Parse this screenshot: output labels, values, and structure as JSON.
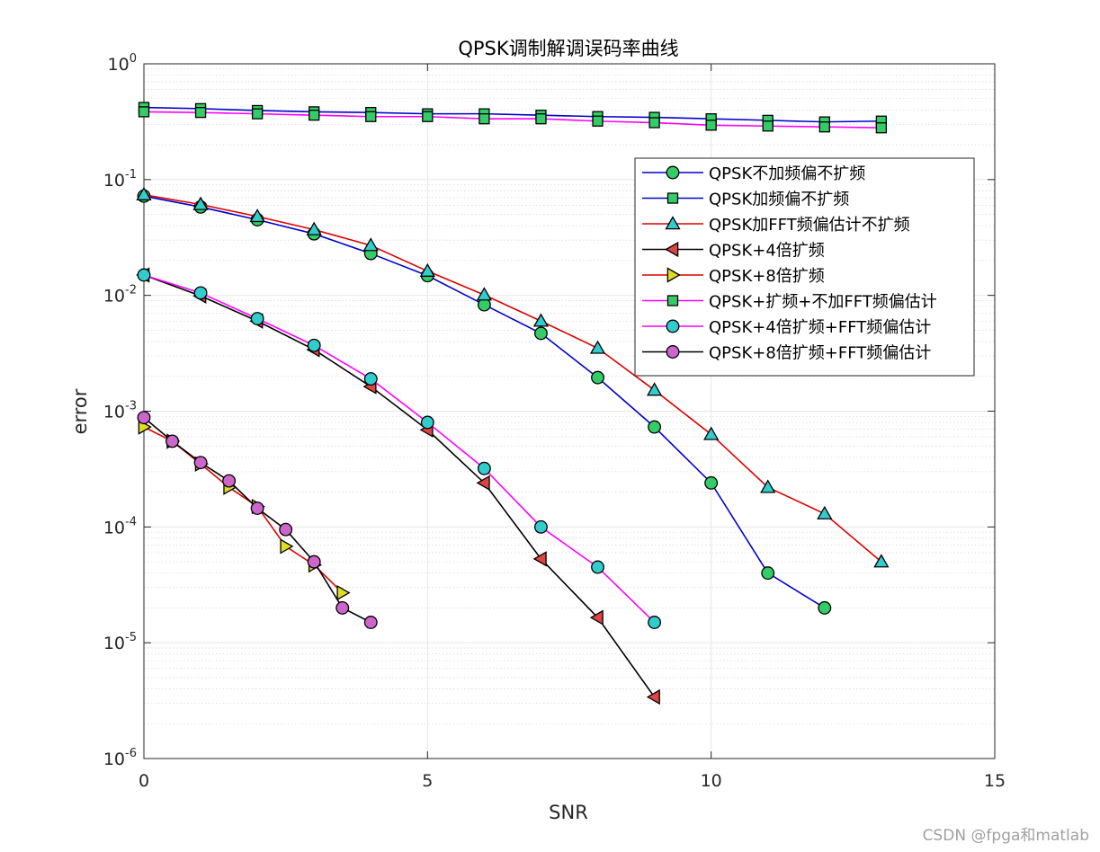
{
  "chart_data": {
    "type": "line",
    "title": "QPSK调制解调误码率曲线",
    "xlabel": "SNR",
    "ylabel": "error",
    "xlim": [
      0,
      15
    ],
    "ylim": [
      1e-06,
      1
    ],
    "yscale": "log",
    "grid": true,
    "minor_grid": true,
    "legend_position": "top-right",
    "x_ticks": [
      "0",
      "5",
      "10",
      "15"
    ],
    "y_ticks": [
      {
        "base": "10",
        "exp": "0"
      },
      {
        "base": "10",
        "exp": "-1"
      },
      {
        "base": "10",
        "exp": "-2"
      },
      {
        "base": "10",
        "exp": "-3"
      },
      {
        "base": "10",
        "exp": "-4"
      },
      {
        "base": "10",
        "exp": "-5"
      },
      {
        "base": "10",
        "exp": "-6"
      }
    ],
    "series": [
      {
        "name": "QPSK不加频偏不扩频",
        "line_color": "#0000cc",
        "marker": "circle",
        "marker_color": "#33cc66",
        "x": [
          0,
          1,
          2,
          3,
          4,
          5,
          6,
          7,
          8,
          9,
          10,
          11,
          12
        ],
        "y": [
          0.072,
          0.058,
          0.045,
          0.034,
          0.023,
          0.0148,
          0.0083,
          0.0047,
          0.00195,
          0.00073,
          0.00024,
          4e-05,
          2e-05
        ]
      },
      {
        "name": "QPSK加频偏不扩频",
        "line_color": "#0000cc",
        "marker": "square",
        "marker_color": "#33cc66",
        "x": [
          0,
          1,
          2,
          3,
          4,
          5,
          6,
          7,
          8,
          9,
          10,
          11,
          12,
          13
        ],
        "y": [
          0.42,
          0.41,
          0.395,
          0.385,
          0.38,
          0.37,
          0.37,
          0.36,
          0.35,
          0.345,
          0.335,
          0.325,
          0.315,
          0.32
        ]
      },
      {
        "name": "QPSK加FFT频偏估计不扩频",
        "line_color": "#dd0000",
        "marker": "triangle-up",
        "marker_color": "#33cccc",
        "x": [
          0,
          1,
          2,
          3,
          4,
          5,
          6,
          7,
          8,
          9,
          10,
          11,
          12,
          13
        ],
        "y": [
          0.074,
          0.061,
          0.048,
          0.037,
          0.027,
          0.0162,
          0.0101,
          0.006,
          0.0035,
          0.00152,
          0.00063,
          0.00022,
          0.00013,
          5e-05
        ]
      },
      {
        "name": "QPSK+4倍扩频",
        "line_color": "#000000",
        "marker": "triangle-left",
        "marker_color": "#dd4444",
        "x": [
          0,
          1,
          2,
          3,
          4,
          5,
          6,
          7,
          8,
          9
        ],
        "y": [
          0.015,
          0.0099,
          0.006,
          0.0034,
          0.00163,
          0.00069,
          0.00024,
          5.3e-05,
          1.65e-05,
          3.4e-06
        ]
      },
      {
        "name": "QPSK+8倍扩频",
        "line_color": "#dd0000",
        "marker": "triangle-right",
        "marker_color": "#dddd22",
        "x": [
          0,
          0.5,
          1,
          1.5,
          2,
          2.5,
          3,
          3.5
        ],
        "y": [
          0.00073,
          0.00055,
          0.00035,
          0.00022,
          0.00015,
          6.8e-05,
          4.7e-05,
          2.7e-05
        ]
      },
      {
        "name": "QPSK+扩频+不加FFT频偏估计",
        "line_color": "#ff00ff",
        "marker": "square",
        "marker_color": "#33cc66",
        "x": [
          0,
          1,
          2,
          3,
          4,
          5,
          6,
          7,
          8,
          9,
          10,
          11,
          12,
          13
        ],
        "y": [
          0.385,
          0.38,
          0.37,
          0.36,
          0.35,
          0.35,
          0.335,
          0.335,
          0.32,
          0.31,
          0.295,
          0.29,
          0.285,
          0.28
        ]
      },
      {
        "name": "QPSK+4倍扩频+FFT频偏估计",
        "line_color": "#ff00ff",
        "marker": "circle",
        "marker_color": "#33cccc",
        "x": [
          0,
          1,
          2,
          3,
          4,
          5,
          6,
          7,
          8,
          9
        ],
        "y": [
          0.015,
          0.0105,
          0.0063,
          0.0037,
          0.0019,
          0.0008,
          0.00032,
          0.0001,
          4.5e-05,
          1.5e-05
        ]
      },
      {
        "name": "QPSK+8倍扩频+FFT频偏估计",
        "line_color": "#000000",
        "marker": "circle",
        "marker_color": "#cc66cc",
        "x": [
          0,
          0.5,
          1,
          1.5,
          2,
          2.5,
          3,
          3.5,
          4
        ],
        "y": [
          0.00088,
          0.00055,
          0.00036,
          0.00025,
          0.000145,
          9.5e-05,
          5e-05,
          2e-05,
          1.5e-05
        ]
      }
    ]
  },
  "watermark": "CSDN @fpga和matlab"
}
